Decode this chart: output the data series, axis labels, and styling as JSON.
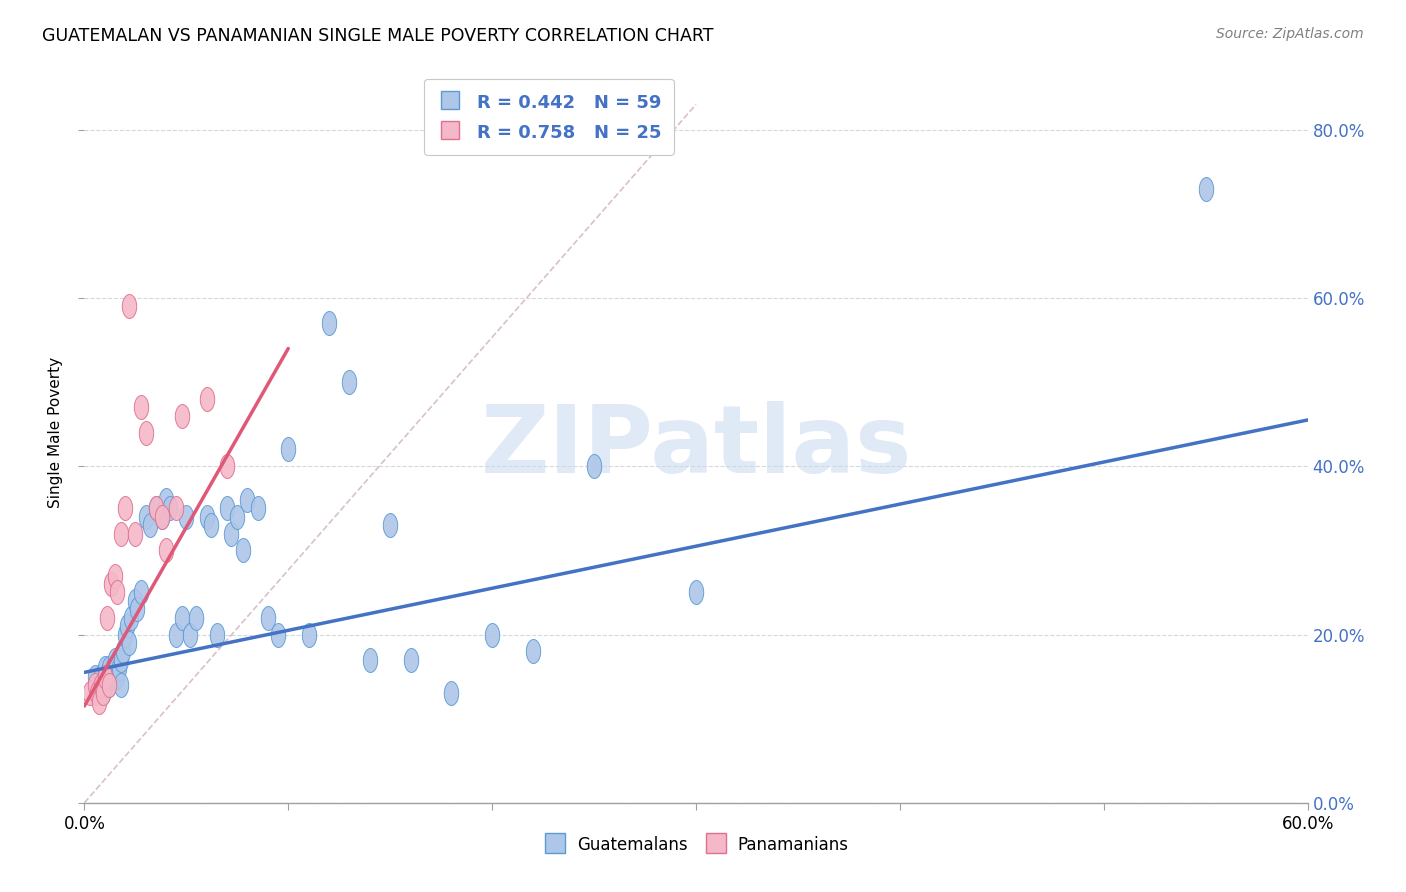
{
  "title": "GUATEMALAN VS PANAMANIAN SINGLE MALE POVERTY CORRELATION CHART",
  "source": "Source: ZipAtlas.com",
  "ylabel": "Single Male Poverty",
  "watermark": "ZIPatlas",
  "legend_entry1": "R = 0.442   N = 59",
  "legend_entry2": "R = 0.758   N = 25",
  "legend_label1": "Guatemalans",
  "legend_label2": "Panamanians",
  "guatemalan_color": "#AEC6E8",
  "guatemalan_edge": "#5B9BD5",
  "panamanian_color": "#F4B8C8",
  "panamanian_edge": "#E07090",
  "trend_blue": "#4472C4",
  "trend_pink": "#E05878",
  "ref_line_color": "#D0B0C0",
  "grid_color": "#D8D8D8",
  "background": "#FFFFFF",
  "xlim": [
    0.0,
    0.6
  ],
  "ylim": [
    0.0,
    0.88
  ],
  "ytick_vals": [
    0.0,
    0.2,
    0.4,
    0.6,
    0.8
  ],
  "xtick_positions": [
    0.0,
    0.1,
    0.2,
    0.3,
    0.4,
    0.5,
    0.6
  ],
  "blue_trend_x": [
    0.0,
    0.6
  ],
  "blue_trend_y": [
    0.155,
    0.455
  ],
  "pink_trend_x": [
    0.0,
    0.1
  ],
  "pink_trend_y": [
    0.115,
    0.54
  ],
  "ref_line_x": [
    0.0,
    0.3
  ],
  "ref_line_y": [
    0.0,
    0.83
  ],
  "guatemalan_x": [
    0.005,
    0.007,
    0.008,
    0.009,
    0.01,
    0.01,
    0.011,
    0.012,
    0.012,
    0.013,
    0.014,
    0.015,
    0.016,
    0.017,
    0.018,
    0.018,
    0.019,
    0.02,
    0.021,
    0.022,
    0.023,
    0.025,
    0.026,
    0.028,
    0.03,
    0.032,
    0.035,
    0.038,
    0.04,
    0.042,
    0.045,
    0.048,
    0.05,
    0.052,
    0.055,
    0.06,
    0.062,
    0.065,
    0.07,
    0.072,
    0.075,
    0.078,
    0.08,
    0.085,
    0.09,
    0.095,
    0.1,
    0.11,
    0.12,
    0.13,
    0.14,
    0.15,
    0.16,
    0.18,
    0.2,
    0.22,
    0.25,
    0.3,
    0.55
  ],
  "guatemalan_y": [
    0.15,
    0.14,
    0.15,
    0.13,
    0.16,
    0.14,
    0.15,
    0.16,
    0.14,
    0.15,
    0.16,
    0.17,
    0.15,
    0.16,
    0.17,
    0.14,
    0.18,
    0.2,
    0.21,
    0.19,
    0.22,
    0.24,
    0.23,
    0.25,
    0.34,
    0.33,
    0.35,
    0.34,
    0.36,
    0.35,
    0.2,
    0.22,
    0.34,
    0.2,
    0.22,
    0.34,
    0.33,
    0.2,
    0.35,
    0.32,
    0.34,
    0.3,
    0.36,
    0.35,
    0.22,
    0.2,
    0.42,
    0.2,
    0.57,
    0.5,
    0.17,
    0.33,
    0.17,
    0.13,
    0.2,
    0.18,
    0.4,
    0.25,
    0.73
  ],
  "panamanian_x": [
    0.003,
    0.005,
    0.006,
    0.007,
    0.008,
    0.009,
    0.01,
    0.011,
    0.012,
    0.013,
    0.015,
    0.016,
    0.018,
    0.02,
    0.022,
    0.025,
    0.028,
    0.03,
    0.035,
    0.038,
    0.04,
    0.045,
    0.048,
    0.06,
    0.07
  ],
  "panamanian_y": [
    0.13,
    0.14,
    0.13,
    0.12,
    0.14,
    0.13,
    0.15,
    0.22,
    0.14,
    0.26,
    0.27,
    0.25,
    0.32,
    0.35,
    0.59,
    0.32,
    0.47,
    0.44,
    0.35,
    0.34,
    0.3,
    0.35,
    0.46,
    0.48,
    0.4
  ]
}
